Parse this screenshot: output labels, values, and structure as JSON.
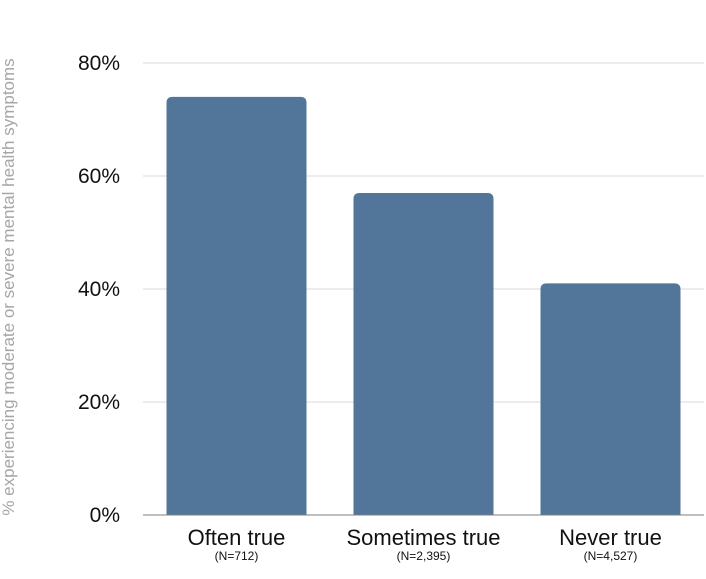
{
  "chart_data": {
    "type": "bar",
    "title": "",
    "xlabel": "",
    "ylabel": "% experiencing moderate or severe mental health symptoms",
    "categories": [
      "Often true",
      "Sometimes true",
      "Never true"
    ],
    "category_notes": [
      "(N=712)",
      "(N=2,395)",
      "(N=4,527)"
    ],
    "values": [
      74,
      57,
      41
    ],
    "ylim": [
      0,
      80
    ],
    "yticks": [
      0,
      20,
      40,
      60,
      80
    ],
    "ytick_labels": [
      "0%",
      "20%",
      "40%",
      "60%",
      "80%"
    ],
    "grid": true,
    "legend": "none",
    "bar_color": "#52769a",
    "grid_color": "#d9d9d9",
    "axis_color": "#7f7f7f"
  }
}
